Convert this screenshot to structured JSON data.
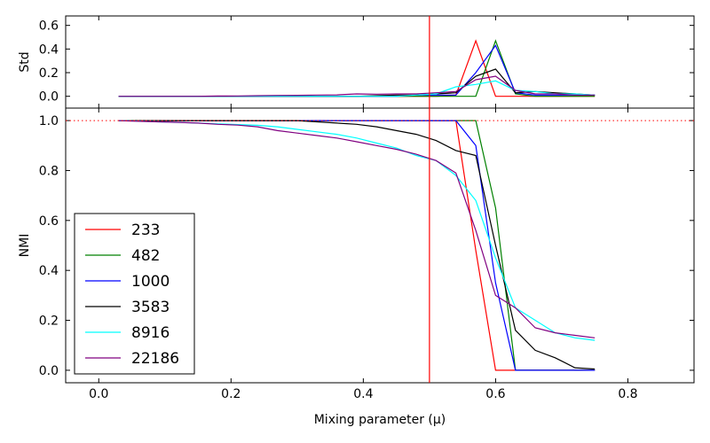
{
  "chart_data": {
    "type": "line",
    "xlabel": "Mixing parameter (μ)",
    "xlim": [
      -0.05,
      0.9
    ],
    "xticks": [
      "0.0",
      "0.2",
      "0.4",
      "0.6",
      "0.8"
    ],
    "xtick_values": [
      0.0,
      0.2,
      0.4,
      0.6,
      0.8
    ],
    "vline_x": 0.5,
    "hline_y": 1.0,
    "x": [
      0.03,
      0.06,
      0.09,
      0.12,
      0.15,
      0.18,
      0.21,
      0.24,
      0.27,
      0.3,
      0.33,
      0.36,
      0.39,
      0.42,
      0.45,
      0.48,
      0.51,
      0.54,
      0.57,
      0.6,
      0.63,
      0.66,
      0.69,
      0.72,
      0.75
    ],
    "panels": [
      {
        "id": "std",
        "ylabel": "Std",
        "ylim": [
          -0.1,
          0.68
        ],
        "yticks": [
          "0.0",
          "0.2",
          "0.4",
          "0.6"
        ],
        "ytick_values": [
          0.0,
          0.2,
          0.4,
          0.6
        ],
        "series": [
          {
            "name": "233",
            "color": "#ff0000",
            "values": [
              0,
              0,
              0,
              0,
              0,
              0,
              0,
              0,
              0,
              0,
              0,
              0,
              0,
              0,
              0,
              0,
              0,
              0.01,
              0.47,
              0,
              0,
              0,
              0,
              0,
              0
            ]
          },
          {
            "name": "482",
            "color": "#008000",
            "values": [
              0,
              0,
              0,
              0,
              0,
              0,
              0,
              0,
              0,
              0,
              0,
              0,
              0,
              0,
              0,
              0,
              0,
              0,
              0,
              0.47,
              0.02,
              0,
              0,
              0,
              0
            ]
          },
          {
            "name": "1000",
            "color": "#0000ff",
            "values": [
              0,
              0,
              0,
              0,
              0,
              0,
              0,
              0,
              0,
              0,
              0,
              0,
              0,
              0,
              0,
              0.01,
              0.01,
              0.01,
              0.2,
              0.43,
              0.03,
              0.01,
              0.01,
              0.01,
              0.01
            ]
          },
          {
            "name": "3583",
            "color": "#000000",
            "values": [
              0,
              0,
              0,
              0,
              0,
              0,
              0,
              0,
              0,
              0,
              0,
              0,
              0,
              0.005,
              0.01,
              0.01,
              0.02,
              0.03,
              0.17,
              0.23,
              0.03,
              0.04,
              0.03,
              0.02,
              0.01
            ]
          },
          {
            "name": "8916",
            "color": "#00ffff",
            "values": [
              0,
              0,
              0,
              0,
              0,
              0,
              0,
              0,
              0,
              0,
              0,
              0,
              0,
              0,
              0,
              0.01,
              0.02,
              0.08,
              0.1,
              0.13,
              0.05,
              0.04,
              0.02,
              0.02,
              0.01
            ]
          },
          {
            "name": "22186",
            "color": "#800080",
            "values": [
              0,
              0,
              0,
              0,
              0,
              0.002,
              0.003,
              0.005,
              0.007,
              0.008,
              0.01,
              0.012,
              0.02,
              0.018,
              0.02,
              0.02,
              0.03,
              0.04,
              0.14,
              0.17,
              0.05,
              0.02,
              0.02,
              0.01,
              0.01
            ]
          }
        ]
      },
      {
        "id": "nmi",
        "ylabel": "NMI",
        "ylim": [
          -0.05,
          1.05
        ],
        "yticks": [
          "0.0",
          "0.2",
          "0.4",
          "0.6",
          "0.8",
          "1.0"
        ],
        "ytick_values": [
          0.0,
          0.2,
          0.4,
          0.6,
          0.8,
          1.0
        ],
        "series": [
          {
            "name": "233",
            "color": "#ff0000",
            "values": [
              1,
              1,
              1,
              1,
              1,
              1,
              1,
              1,
              1,
              1,
              1,
              1,
              1,
              1,
              1,
              1,
              1,
              1,
              0.48,
              0,
              0,
              0,
              0,
              0,
              0
            ]
          },
          {
            "name": "482",
            "color": "#008000",
            "values": [
              1,
              1,
              1,
              1,
              1,
              1,
              1,
              1,
              1,
              1,
              1,
              1,
              1,
              1,
              1,
              1,
              1,
              1,
              1,
              0.65,
              0,
              0,
              0,
              0,
              0
            ]
          },
          {
            "name": "1000",
            "color": "#0000ff",
            "values": [
              1,
              1,
              1,
              1,
              1,
              1,
              1,
              1,
              1,
              1,
              1,
              1,
              1,
              1,
              1,
              1,
              1,
              1,
              0.9,
              0.35,
              0,
              0,
              0,
              0,
              0
            ]
          },
          {
            "name": "3583",
            "color": "#000000",
            "values": [
              1,
              1,
              1,
              1,
              1,
              1,
              1,
              1,
              1,
              1,
              0.995,
              0.99,
              0.985,
              0.975,
              0.96,
              0.945,
              0.92,
              0.88,
              0.86,
              0.5,
              0.16,
              0.08,
              0.05,
              0.01,
              0.005
            ]
          },
          {
            "name": "8916",
            "color": "#00ffff",
            "values": [
              1,
              0.998,
              0.995,
              0.993,
              0.99,
              0.987,
              0.984,
              0.981,
              0.975,
              0.965,
              0.955,
              0.945,
              0.93,
              0.91,
              0.89,
              0.86,
              0.84,
              0.78,
              0.68,
              0.45,
              0.25,
              0.2,
              0.15,
              0.13,
              0.12
            ]
          },
          {
            "name": "22186",
            "color": "#800080",
            "values": [
              1,
              0.997,
              0.995,
              0.993,
              0.99,
              0.985,
              0.982,
              0.975,
              0.96,
              0.95,
              0.94,
              0.93,
              0.915,
              0.9,
              0.885,
              0.865,
              0.84,
              0.79,
              0.56,
              0.3,
              0.25,
              0.17,
              0.15,
              0.14,
              0.13
            ]
          }
        ]
      }
    ],
    "legend": {
      "placement": "lower-left",
      "entries": [
        "233",
        "482",
        "1000",
        "3583",
        "8916",
        "22186"
      ]
    }
  }
}
